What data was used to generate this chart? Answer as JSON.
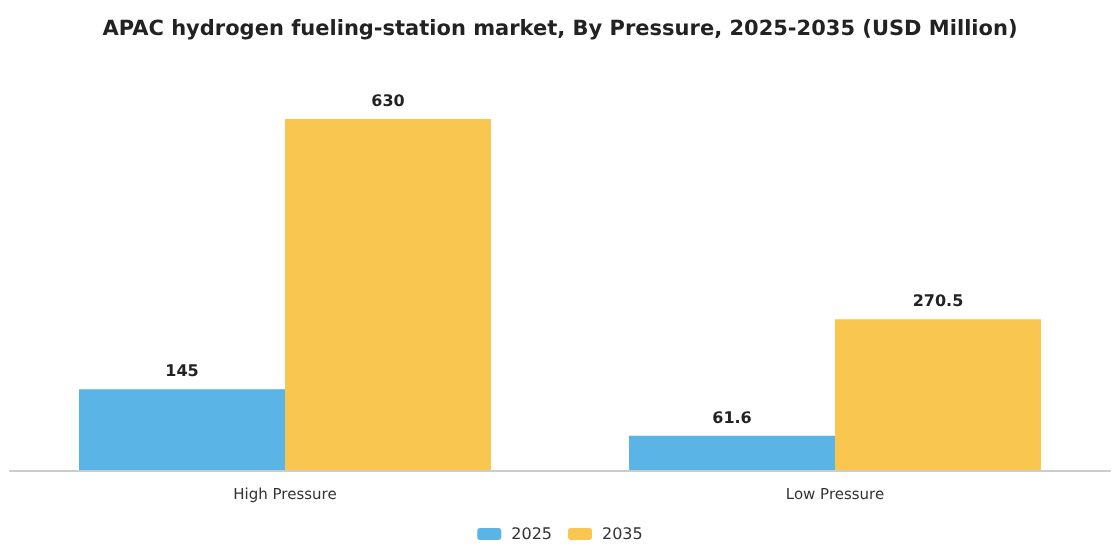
{
  "chart_data": {
    "type": "bar",
    "title": "APAC hydrogen fueling-station market, By Pressure, 2025-2035 (USD Million)",
    "categories": [
      "High Pressure",
      "Low Pressure"
    ],
    "series": [
      {
        "name": "2025",
        "color": "#5ab4e5",
        "values": [
          145,
          61.6
        ]
      },
      {
        "name": "2035",
        "color": "#f9c64f",
        "values": [
          630,
          270.5
        ]
      }
    ],
    "data_labels": true,
    "legend": "bottom",
    "grid": false
  }
}
